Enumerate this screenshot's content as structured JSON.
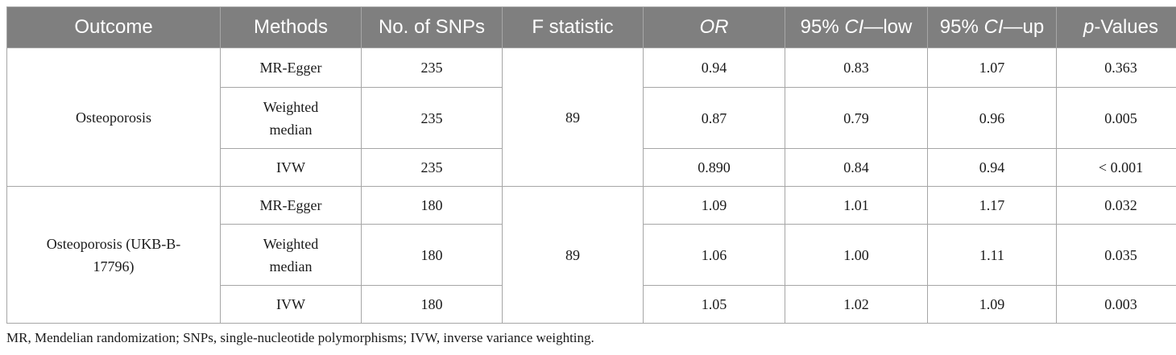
{
  "headers": {
    "outcome": "Outcome",
    "methods": "Methods",
    "snps": "No. of SNPs",
    "fstat": "F statistic",
    "or": "OR",
    "ci_low_prefix": "95% ",
    "ci_low_ci": "CI",
    "ci_low_suffix": "—low",
    "ci_up_prefix": "95% ",
    "ci_up_ci": "CI",
    "ci_up_suffix": "—up",
    "p_italic": "p",
    "p_suffix": "-Values"
  },
  "groups": [
    {
      "outcome": "Osteoporosis",
      "fstat": "89",
      "rows": [
        {
          "method": "MR-Egger",
          "snps": "235",
          "or": "0.94",
          "ci_low": "0.83",
          "ci_up": "1.07",
          "p": "0.363"
        },
        {
          "method": "Weighted median",
          "snps": "235",
          "or": "0.87",
          "ci_low": "0.79",
          "ci_up": "0.96",
          "p": "0.005"
        },
        {
          "method": "IVW",
          "snps": "235",
          "or": "0.890",
          "ci_low": "0.84",
          "ci_up": "0.94",
          "p": "< 0.001"
        }
      ]
    },
    {
      "outcome": "Osteoporosis (UKB-B-17796)",
      "fstat": "89",
      "rows": [
        {
          "method": "MR-Egger",
          "snps": "180",
          "or": "1.09",
          "ci_low": "1.01",
          "ci_up": "1.17",
          "p": "0.032"
        },
        {
          "method": "Weighted median",
          "snps": "180",
          "or": "1.06",
          "ci_low": "1.00",
          "ci_up": "1.11",
          "p": "0.035"
        },
        {
          "method": "IVW",
          "snps": "180",
          "or": "1.05",
          "ci_low": "1.02",
          "ci_up": "1.09",
          "p": "0.003"
        }
      ]
    }
  ],
  "footnote": "MR, Mendelian randomization; SNPs, single-nucleotide polymorphisms; IVW, inverse variance weighting."
}
